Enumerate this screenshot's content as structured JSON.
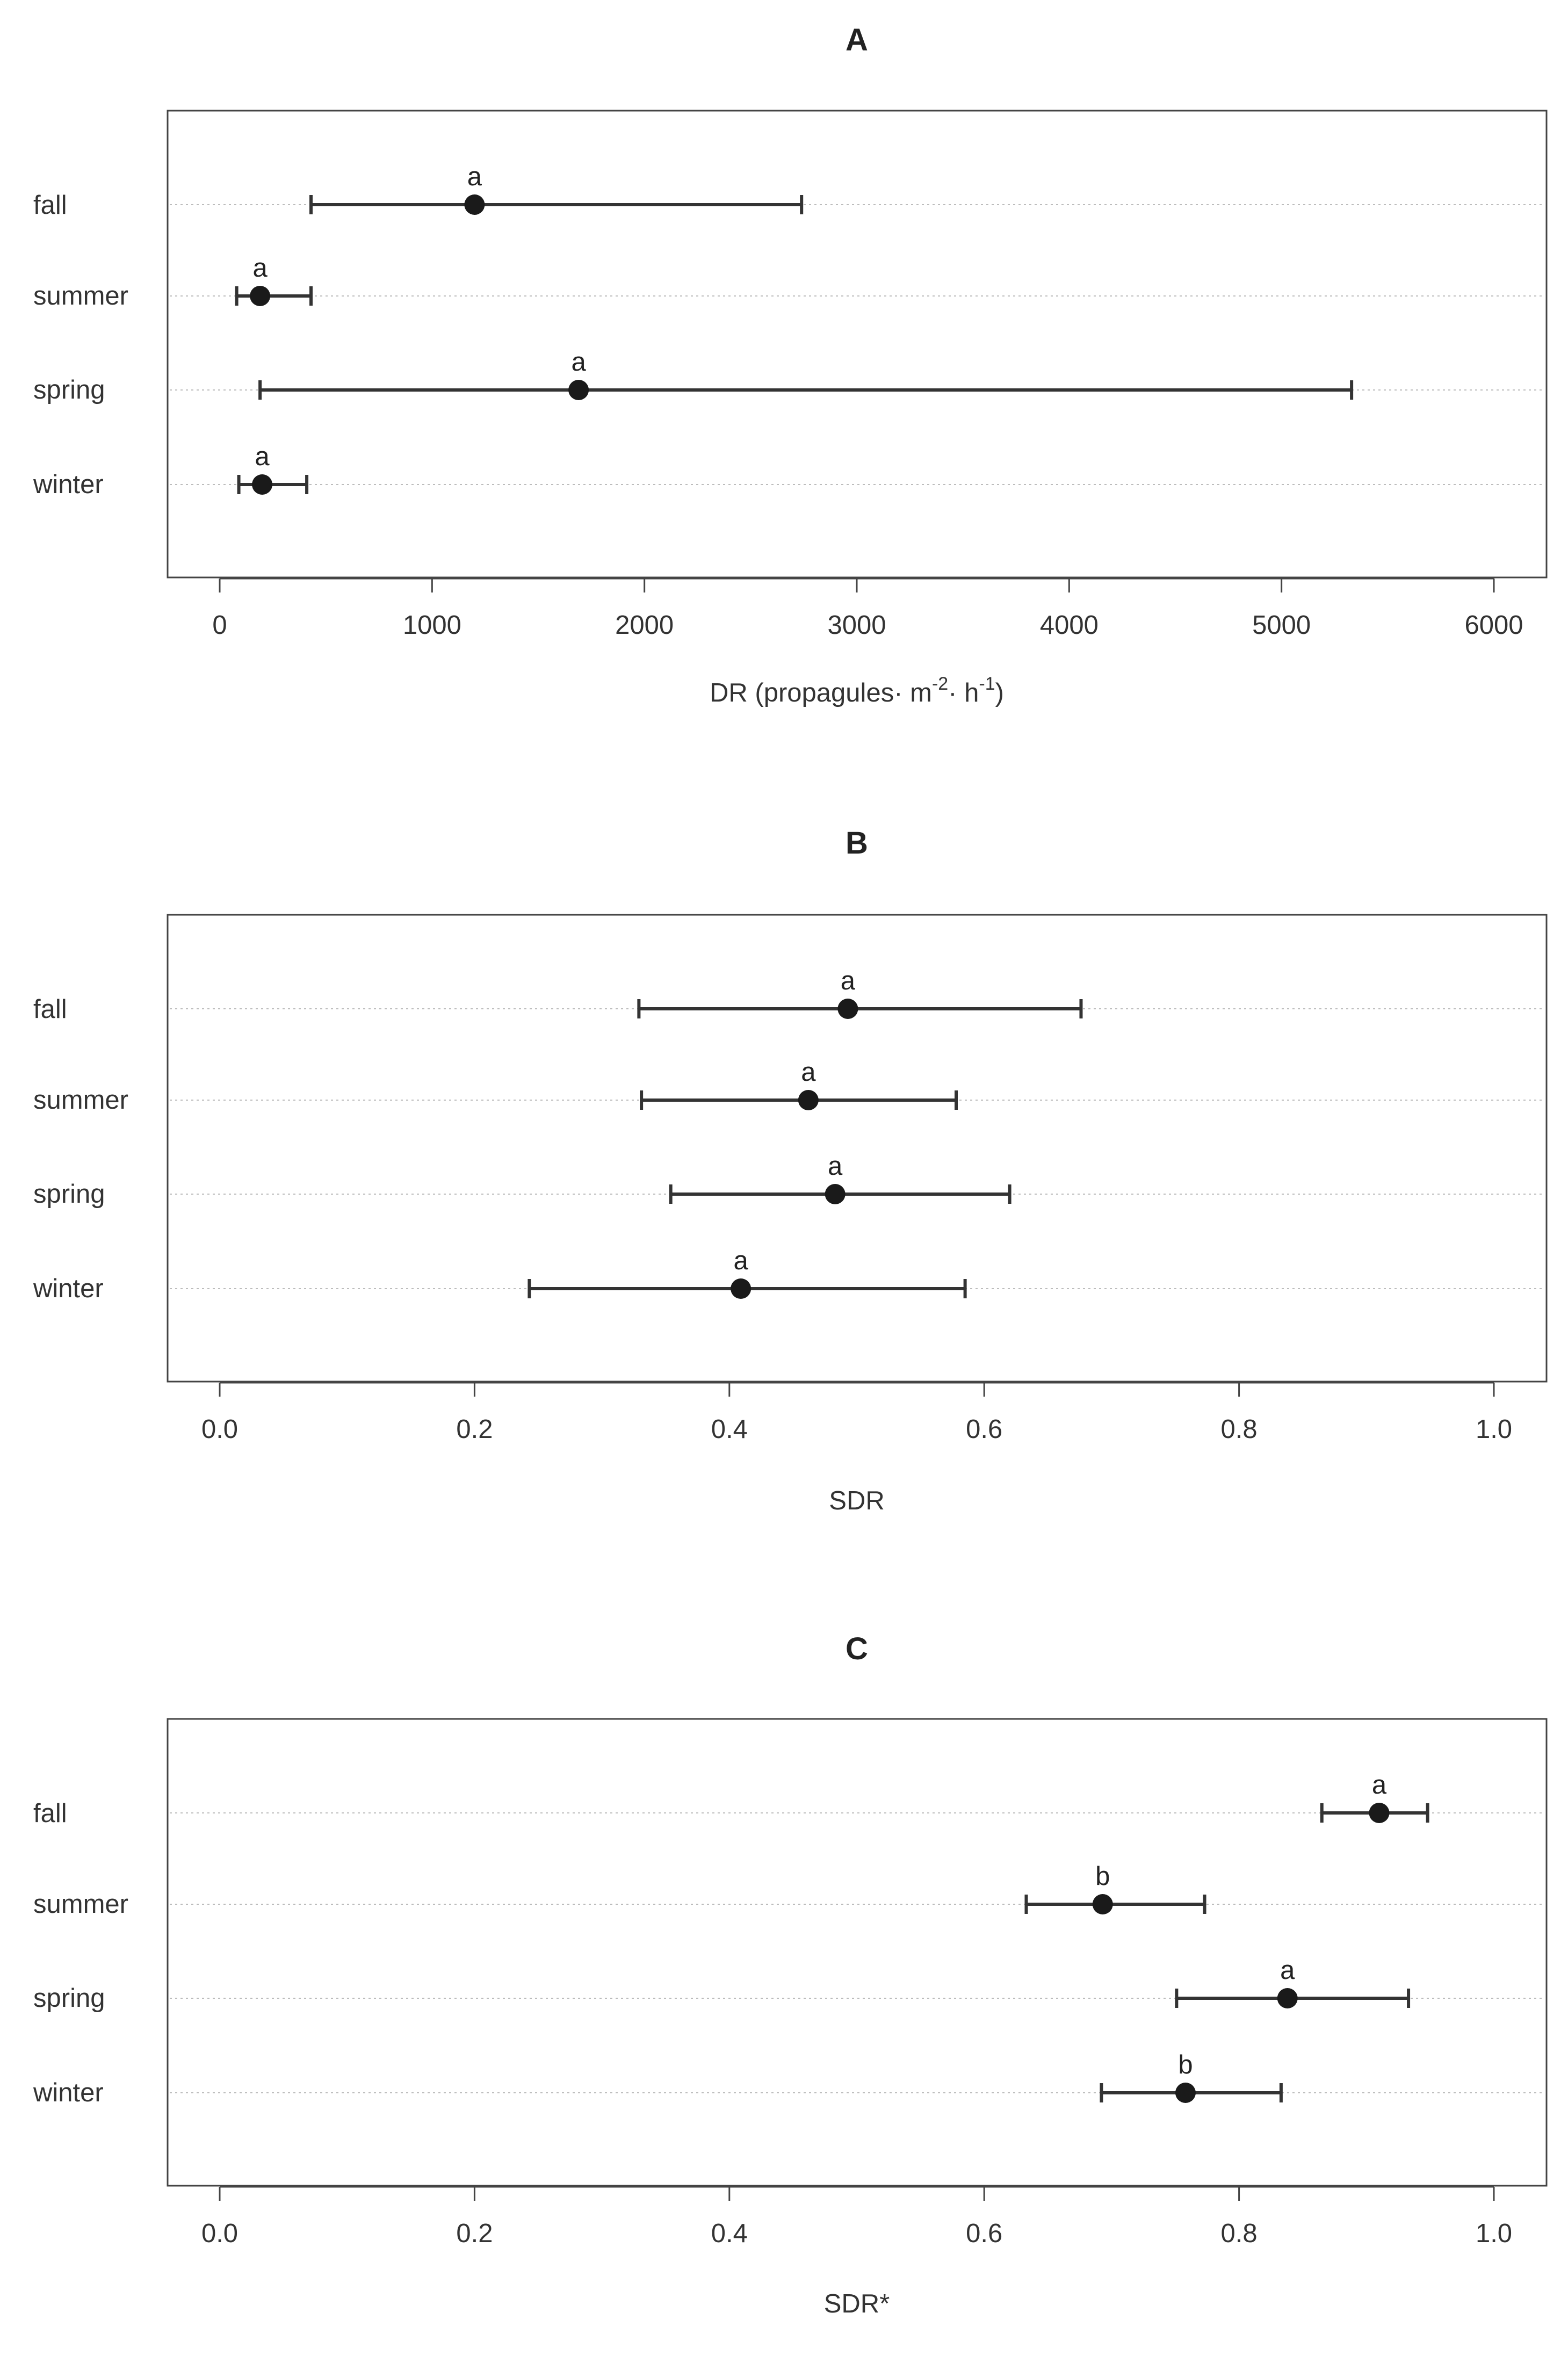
{
  "chart_data": [
    {
      "type": "scatter",
      "title": "A",
      "xlabel_prefix": "DR (propagules",
      "xlabel_m": "m",
      "xlabel_m_exp": "-2",
      "xlabel_h": "h",
      "xlabel_h_exp": "-1",
      "xlabel_suffix": ")",
      "xlim": [
        0,
        6000
      ],
      "xticks": [
        0,
        1000,
        2000,
        3000,
        4000,
        5000,
        6000
      ],
      "xtick_labels": [
        "0",
        "1000",
        "2000",
        "3000",
        "4000",
        "5000",
        "6000"
      ],
      "categories": [
        "fall",
        "summer",
        "spring",
        "winter"
      ],
      "points": [
        {
          "category": "fall",
          "mean": 1200,
          "lower": 430,
          "upper": 2740,
          "letter": "a"
        },
        {
          "category": "summer",
          "mean": 190,
          "lower": 80,
          "upper": 430,
          "letter": "a"
        },
        {
          "category": "spring",
          "mean": 1690,
          "lower": 190,
          "upper": 5330,
          "letter": "a"
        },
        {
          "category": "winter",
          "mean": 200,
          "lower": 90,
          "upper": 410,
          "letter": "a"
        }
      ]
    },
    {
      "type": "scatter",
      "title": "B",
      "xlabel": "SDR",
      "xlim": [
        0,
        1
      ],
      "xticks": [
        0,
        0.2,
        0.4,
        0.6,
        0.8,
        1.0
      ],
      "xtick_labels": [
        "0.0",
        "0.2",
        "0.4",
        "0.6",
        "0.8",
        "1.0"
      ],
      "categories": [
        "fall",
        "summer",
        "spring",
        "winter"
      ],
      "points": [
        {
          "category": "fall",
          "mean": 0.493,
          "lower": 0.329,
          "upper": 0.676,
          "letter": "a"
        },
        {
          "category": "summer",
          "mean": 0.462,
          "lower": 0.331,
          "upper": 0.578,
          "letter": "a"
        },
        {
          "category": "spring",
          "mean": 0.483,
          "lower": 0.354,
          "upper": 0.62,
          "letter": "a"
        },
        {
          "category": "winter",
          "mean": 0.409,
          "lower": 0.243,
          "upper": 0.585,
          "letter": "a"
        }
      ]
    },
    {
      "type": "scatter",
      "title": "C",
      "xlabel": "SDR*",
      "xlim": [
        0,
        1
      ],
      "xticks": [
        0,
        0.2,
        0.4,
        0.6,
        0.8,
        1.0
      ],
      "xtick_labels": [
        "0.0",
        "0.2",
        "0.4",
        "0.6",
        "0.8",
        "1.0"
      ],
      "categories": [
        "fall",
        "summer",
        "spring",
        "winter"
      ],
      "points": [
        {
          "category": "fall",
          "mean": 0.91,
          "lower": 0.865,
          "upper": 0.948,
          "letter": "a"
        },
        {
          "category": "summer",
          "mean": 0.693,
          "lower": 0.633,
          "upper": 0.773,
          "letter": "b"
        },
        {
          "category": "spring",
          "mean": 0.838,
          "lower": 0.751,
          "upper": 0.933,
          "letter": "a"
        },
        {
          "category": "winter",
          "mean": 0.758,
          "lower": 0.692,
          "upper": 0.833,
          "letter": "b"
        }
      ]
    }
  ]
}
